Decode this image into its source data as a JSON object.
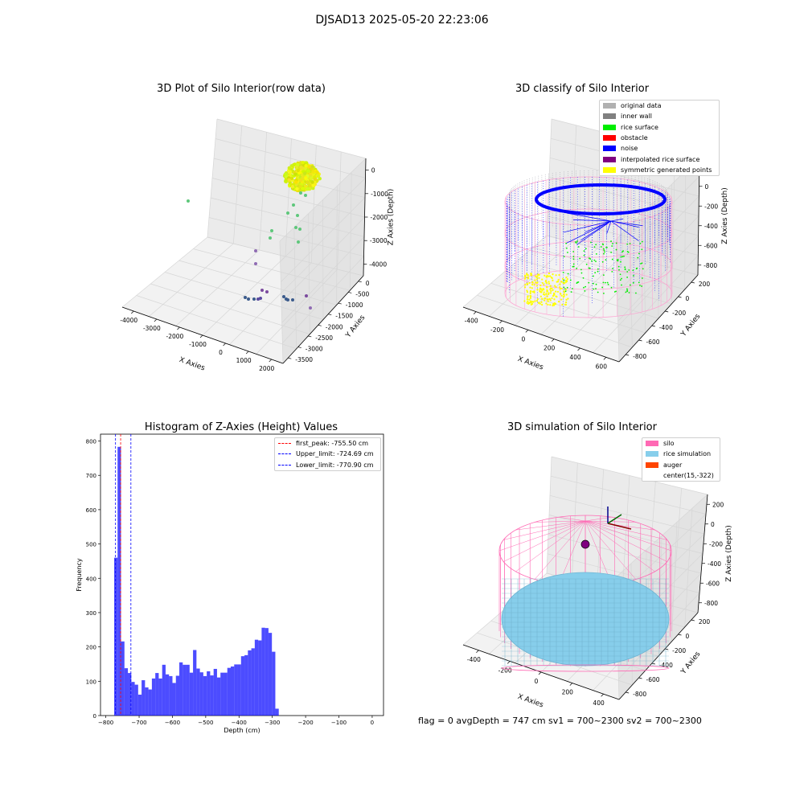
{
  "suptitle": "DJSAD13 2025-05-20 22:23:06",
  "panels": {
    "raw": {
      "title": "3D Plot of Silo Interior(row data)",
      "xlabel": "X Axies",
      "ylabel": "Y Axies",
      "zlabel": "Z Axies (Depth)",
      "xticks": [
        "-4000",
        "-3000",
        "-2000",
        "-1000",
        "0",
        "1000",
        "2000"
      ],
      "yticks": [
        "0",
        "-500",
        "-1000",
        "-1500",
        "-2000",
        "-2500",
        "-3000",
        "-3500"
      ],
      "zticks": [
        "0",
        "-1000",
        "-2000",
        "-3000",
        "-4000"
      ]
    },
    "classify": {
      "title": "3D classify of Silo Interior",
      "xlabel": "X Axies",
      "ylabel": "Y Axies",
      "zlabel": "Z Axies (Depth)",
      "xticks": [
        "-400",
        "-200",
        "0",
        "200",
        "400",
        "600"
      ],
      "yticks": [
        "200",
        "0",
        "-200",
        "-400",
        "-600",
        "-800"
      ],
      "zticks": [
        "200",
        "0",
        "-200",
        "-400",
        "-600",
        "-800"
      ],
      "legend": [
        {
          "label": "original data",
          "color": "#b0b0b0"
        },
        {
          "label": "inner wall",
          "color": "#808080"
        },
        {
          "label": "rice surface",
          "color": "#00ee00"
        },
        {
          "label": "obstacle",
          "color": "#ff0000"
        },
        {
          "label": "noise",
          "color": "#0000ff"
        },
        {
          "label": "interpolated rice surface",
          "color": "#800080"
        },
        {
          "label": "symmetric generated points",
          "color": "#ffff00"
        }
      ]
    },
    "simulation": {
      "title": "3D simulation of Silo Interior",
      "xlabel": "X Axies",
      "ylabel": "Y Axies",
      "zlabel": "Z Axies (Depth)",
      "xticks": [
        "-400",
        "-200",
        "0",
        "200",
        "400"
      ],
      "yticks": [
        "200",
        "0",
        "-200",
        "-400",
        "-600",
        "-800"
      ],
      "zticks": [
        "200",
        "0",
        "-200",
        "-400",
        "-600",
        "-800"
      ],
      "legend": [
        {
          "label": "silo",
          "color": "#ff69b4"
        },
        {
          "label": "rice simulation",
          "color": "#87ceeb"
        },
        {
          "label": "auger",
          "color": "#ff4500"
        },
        {
          "label": "center(15,-322)",
          "color": ""
        }
      ],
      "info": "flag = 0     avgDepth = 747 cm  sv1 = 700~2300  sv2 = 700~2300"
    }
  },
  "chart_data": [
    {
      "type": "scatter",
      "title": "3D Plot of Silo Interior(row data)",
      "xlabel": "X Axies",
      "ylabel": "Y Axies",
      "zlabel": "Z Axies (Depth)",
      "xlim": [
        -4500,
        2000
      ],
      "ylim": [
        -3700,
        300
      ],
      "zlim": [
        -4500,
        200
      ],
      "colormap": "viridis",
      "grid": true
    },
    {
      "type": "scatter",
      "title": "3D classify of Silo Interior",
      "xlabel": "X Axies",
      "ylabel": "Y Axies",
      "zlabel": "Z Axies (Depth)",
      "series": [
        {
          "name": "original data"
        },
        {
          "name": "inner wall"
        },
        {
          "name": "rice surface"
        },
        {
          "name": "obstacle"
        },
        {
          "name": "noise"
        },
        {
          "name": "interpolated rice surface"
        },
        {
          "name": "symmetric generated points"
        }
      ],
      "legend_position": "top-right",
      "grid": true
    },
    {
      "type": "bar",
      "title": "Histogram of Z-Axies (Height) Values",
      "xlabel": "Depth (cm)",
      "ylabel": "Frequency",
      "xlim": [
        -800,
        0
      ],
      "ylim": [
        0,
        820
      ],
      "xticks": [
        -800,
        -700,
        -600,
        -500,
        -400,
        -300,
        -200,
        -100,
        0
      ],
      "yticks": [
        0,
        100,
        200,
        300,
        400,
        500,
        600,
        700,
        800
      ],
      "bin_start": -775,
      "bin_width": 10.3,
      "values": [
        460,
        783,
        216,
        138,
        124,
        98,
        90,
        61,
        103,
        82,
        76,
        108,
        124,
        108,
        148,
        120,
        115,
        95,
        116,
        155,
        148,
        148,
        125,
        191,
        137,
        126,
        115,
        129,
        117,
        136,
        111,
        125,
        125,
        139,
        143,
        149,
        149,
        173,
        176,
        190,
        196,
        221,
        219,
        256,
        255,
        241,
        186,
        20
      ],
      "color": "#0000ff",
      "lines": [
        {
          "label": "first_peak: -755.50 cm",
          "x": -755.5,
          "color": "#ff0000"
        },
        {
          "label": "Upper_limit: -724.69 cm",
          "x": -724.69,
          "color": "#0000ff"
        },
        {
          "label": "Lower_limit: -770.90 cm",
          "x": -770.9,
          "color": "#0000ff"
        }
      ],
      "legend_position": "top-right"
    },
    {
      "type": "scatter",
      "title": "3D simulation of Silo Interior",
      "xlabel": "X Axies",
      "ylabel": "Y Axies",
      "zlabel": "Z Axies (Depth)",
      "series": [
        {
          "name": "silo"
        },
        {
          "name": "rice simulation"
        },
        {
          "name": "auger"
        },
        {
          "name": "center(15,-322)"
        }
      ],
      "legend_position": "top-right",
      "grid": true
    }
  ]
}
